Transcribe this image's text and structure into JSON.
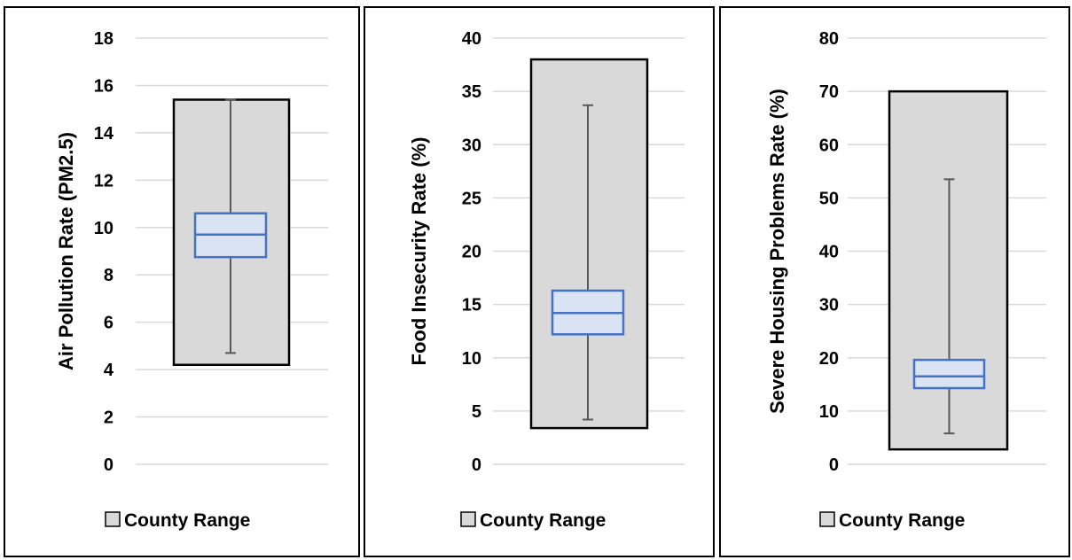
{
  "chart_data": [
    {
      "type": "box",
      "ylabel": "Air Pollution Rate (PM2.5)",
      "ylim": [
        0,
        18
      ],
      "yticks": [
        0,
        2,
        4,
        6,
        8,
        10,
        12,
        14,
        16,
        18
      ],
      "grid": true,
      "legend": {
        "label": "County Range",
        "placement": "bottom"
      },
      "range": {
        "min": 4.2,
        "max": 15.4
      },
      "box": {
        "whisker_low": 4.7,
        "q1": 8.75,
        "median": 9.7,
        "q3": 10.6,
        "whisker_high": 15.4
      },
      "colors": {
        "range_fill": "#d9d9d9",
        "box_fill": "#dae3f3",
        "box_stroke": "#4472c4",
        "whisker": "#595959"
      }
    },
    {
      "type": "box",
      "ylabel": "Food Insecurity Rate (%)",
      "ylim": [
        0,
        40
      ],
      "yticks": [
        0,
        5,
        10,
        15,
        20,
        25,
        30,
        35,
        40
      ],
      "grid": true,
      "legend": {
        "label": "County Range",
        "placement": "bottom"
      },
      "range": {
        "min": 3.4,
        "max": 38
      },
      "box": {
        "whisker_low": 4.2,
        "q1": 12.2,
        "median": 14.2,
        "q3": 16.3,
        "whisker_high": 33.7
      },
      "colors": {
        "range_fill": "#d9d9d9",
        "box_fill": "#dae3f3",
        "box_stroke": "#4472c4",
        "whisker": "#595959"
      }
    },
    {
      "type": "box",
      "ylabel": "Severe Housing Problems Rate (%)",
      "ylim": [
        0,
        80
      ],
      "yticks": [
        0,
        10,
        20,
        30,
        40,
        50,
        60,
        70,
        80
      ],
      "grid": true,
      "legend": {
        "label": "County Range",
        "placement": "bottom"
      },
      "range": {
        "min": 2.8,
        "max": 70
      },
      "box": {
        "whisker_low": 5.8,
        "q1": 14.3,
        "median": 16.5,
        "q3": 19.6,
        "whisker_high": 53.5
      },
      "colors": {
        "range_fill": "#d9d9d9",
        "box_fill": "#dae3f3",
        "box_stroke": "#4472c4",
        "whisker": "#595959"
      }
    }
  ]
}
